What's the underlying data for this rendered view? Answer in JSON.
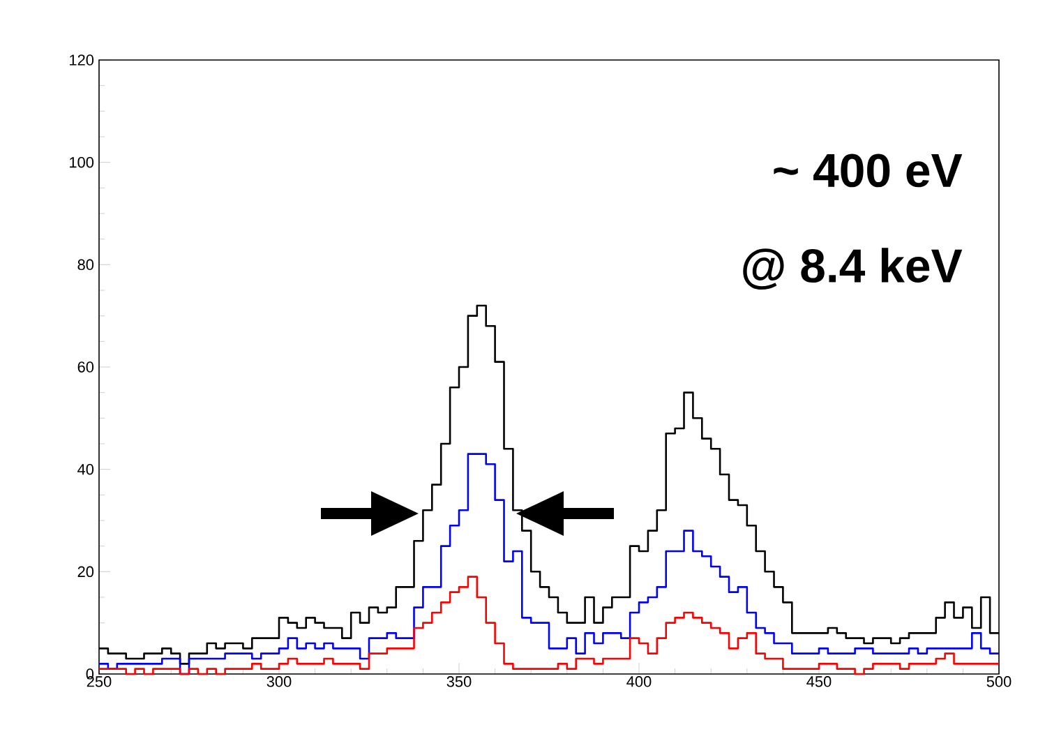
{
  "chart_data": {
    "type": "histogram",
    "bins": [
      250,
      252.5,
      255,
      257.5,
      260,
      262.5,
      265,
      267.5,
      270,
      272.5,
      275,
      277.5,
      280,
      282.5,
      285,
      287.5,
      290,
      292.5,
      295,
      297.5,
      300,
      302.5,
      305,
      307.5,
      310,
      312.5,
      315,
      317.5,
      320,
      322.5,
      325,
      327.5,
      330,
      332.5,
      335,
      337.5,
      340,
      342.5,
      345,
      347.5,
      350,
      352.5,
      355,
      357.5,
      360,
      362.5,
      365,
      367.5,
      370,
      372.5,
      375,
      377.5,
      380,
      382.5,
      385,
      387.5,
      390,
      392.5,
      395,
      397.5,
      400,
      402.5,
      405,
      407.5,
      410,
      412.5,
      415,
      417.5,
      420,
      422.5,
      425,
      427.5,
      430,
      432.5,
      435,
      437.5,
      440,
      442.5,
      445,
      447.5,
      450,
      452.5,
      455,
      457.5,
      460,
      462.5,
      465,
      467.5,
      470,
      472.5,
      475,
      477.5,
      480,
      482.5,
      485,
      487.5,
      490,
      492.5,
      495,
      497.5,
      500
    ],
    "series": [
      {
        "color": "#000000",
        "values": [
          5,
          4,
          4,
          3,
          3,
          4,
          4,
          5,
          4,
          2,
          4,
          4,
          6,
          5,
          6,
          6,
          5,
          7,
          7,
          7,
          11,
          10,
          9,
          11,
          10,
          9,
          9,
          7,
          12,
          10,
          13,
          12,
          13,
          17,
          17,
          26,
          32,
          37,
          45,
          56,
          60,
          70,
          72,
          68,
          61,
          44,
          32,
          28,
          20,
          17,
          15,
          12,
          10,
          10,
          15,
          10,
          13,
          15,
          15,
          25,
          24,
          28,
          32,
          47,
          48,
          55,
          50,
          46,
          44,
          39,
          34,
          33,
          29,
          24,
          20,
          17,
          14,
          8,
          8,
          8,
          8,
          9,
          8,
          7,
          7,
          6,
          7,
          7,
          6,
          7,
          8,
          8,
          8,
          11,
          14,
          11,
          13,
          9,
          15,
          8
        ]
      },
      {
        "color": "#0000ff",
        "values": [
          2,
          1,
          2,
          2,
          2,
          2,
          2,
          3,
          3,
          0,
          3,
          3,
          3,
          3,
          4,
          4,
          4,
          3,
          4,
          4,
          5,
          7,
          5,
          6,
          5,
          6,
          5,
          5,
          5,
          3,
          7,
          7,
          8,
          7,
          7,
          13,
          17,
          17,
          25,
          29,
          32,
          43,
          43,
          41,
          34,
          22,
          24,
          11,
          10,
          10,
          5,
          5,
          7,
          4,
          8,
          6,
          8,
          8,
          7,
          12,
          14,
          15,
          17,
          24,
          24,
          28,
          24,
          23,
          21,
          19,
          16,
          17,
          12,
          9,
          8,
          6,
          6,
          4,
          4,
          4,
          5,
          4,
          4,
          4,
          5,
          5,
          4,
          4,
          4,
          4,
          5,
          4,
          5,
          5,
          5,
          5,
          5,
          8,
          5,
          4
        ]
      },
      {
        "color": "#ff0000",
        "values": [
          1,
          1,
          1,
          0,
          1,
          0,
          1,
          1,
          1,
          0,
          1,
          0,
          1,
          0,
          1,
          1,
          1,
          2,
          1,
          1,
          2,
          3,
          2,
          2,
          2,
          3,
          2,
          2,
          2,
          1,
          4,
          4,
          5,
          5,
          5,
          9,
          10,
          12,
          14,
          16,
          17,
          19,
          15,
          10,
          6,
          2,
          1,
          1,
          1,
          1,
          1,
          2,
          1,
          3,
          3,
          2,
          3,
          3,
          3,
          7,
          6,
          4,
          7,
          10,
          11,
          12,
          11,
          10,
          9,
          8,
          5,
          7,
          8,
          4,
          3,
          3,
          1,
          1,
          1,
          1,
          2,
          2,
          1,
          1,
          0,
          1,
          2,
          2,
          2,
          1,
          2,
          2,
          2,
          3,
          4,
          2,
          2,
          2,
          2,
          2
        ]
      }
    ],
    "xlim": [
      250,
      500
    ],
    "ylim": [
      0,
      120
    ],
    "xticks": [
      250,
      300,
      350,
      400,
      450,
      500
    ],
    "yticks": [
      0,
      20,
      40,
      60,
      80,
      100,
      120
    ],
    "annotations": [
      "~ 400 eV",
      "@ 8.4 keV"
    ]
  }
}
